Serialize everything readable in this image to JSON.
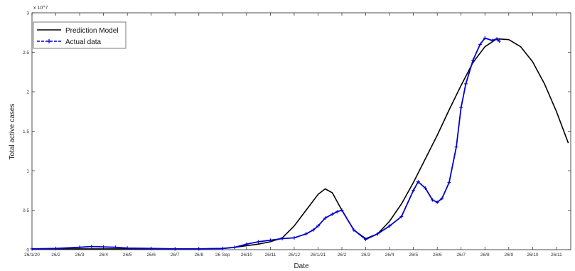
{
  "chart_data": {
    "type": "line",
    "title": "",
    "xlabel": "Date",
    "ylabel": "Total active cases",
    "y_exponent_label": "x 10^7",
    "ylim": [
      0,
      3
    ],
    "yticks": [
      0,
      0.5,
      1,
      1.5,
      2,
      2.5,
      3
    ],
    "ytick_labels": [
      "0",
      "0.5",
      "1",
      "1.5",
      "2",
      "2.5",
      "3"
    ],
    "xticks": [
      0,
      1,
      2,
      3,
      4,
      5,
      6,
      7,
      8,
      9,
      10,
      11,
      12,
      13,
      14,
      15,
      16,
      17,
      18,
      19,
      20,
      21,
      22
    ],
    "xtick_labels": [
      "26/1/20",
      "26/2",
      "26/3",
      "26/4",
      "26/5",
      "26/6",
      "26/7",
      "26/8",
      "26 Sep",
      "26/10",
      "26/11",
      "26/12",
      "26/1/21",
      "26/2",
      "26/3",
      "26/4",
      "26/5",
      "26/6",
      "26/7",
      "26/8",
      "26/9",
      "26/10",
      "26/11"
    ],
    "xlim": [
      0,
      22.6
    ],
    "legend": {
      "placement": "top-left",
      "entries": [
        "Prediction Model",
        "Actual data"
      ]
    },
    "grid": false,
    "series": [
      {
        "name": "Prediction Model",
        "color": "#000000",
        "x": [
          0,
          1,
          2,
          3,
          4,
          5,
          6,
          7,
          8,
          8.5,
          9,
          9.5,
          10,
          10.5,
          11,
          11.5,
          12,
          12.3,
          12.6,
          13,
          13.5,
          14,
          14.5,
          15,
          15.5,
          16,
          16.5,
          17,
          17.5,
          18,
          18.5,
          19,
          19.5,
          20,
          20.5,
          21,
          21.5,
          22,
          22.5
        ],
        "y": [
          0.01,
          0.01,
          0.01,
          0.01,
          0.01,
          0.01,
          0.01,
          0.01,
          0.015,
          0.03,
          0.05,
          0.07,
          0.1,
          0.15,
          0.3,
          0.5,
          0.7,
          0.77,
          0.72,
          0.5,
          0.25,
          0.14,
          0.2,
          0.36,
          0.58,
          0.85,
          1.15,
          1.45,
          1.77,
          2.08,
          2.37,
          2.57,
          2.67,
          2.66,
          2.57,
          2.38,
          2.1,
          1.75,
          1.35
        ]
      },
      {
        "name": "Actual data",
        "color": "#0000cc",
        "x": [
          0,
          1,
          2,
          2.5,
          3,
          3.5,
          4,
          5,
          6,
          7,
          8,
          8.5,
          9,
          9.5,
          10,
          10.5,
          11,
          11.5,
          11.8,
          12,
          12.3,
          12.6,
          12.8,
          13,
          13.5,
          14,
          14.5,
          15,
          15.5,
          16,
          16.2,
          16.5,
          16.8,
          17,
          17.2,
          17.5,
          17.8,
          18,
          18.2,
          18.5,
          18.8,
          19,
          19.3,
          19.5,
          19.6
        ],
        "y": [
          0.01,
          0.015,
          0.03,
          0.04,
          0.035,
          0.03,
          0.02,
          0.015,
          0.01,
          0.01,
          0.015,
          0.03,
          0.07,
          0.1,
          0.12,
          0.14,
          0.15,
          0.2,
          0.25,
          0.3,
          0.4,
          0.45,
          0.48,
          0.5,
          0.25,
          0.13,
          0.2,
          0.3,
          0.42,
          0.75,
          0.86,
          0.78,
          0.63,
          0.6,
          0.65,
          0.85,
          1.3,
          1.8,
          2.1,
          2.4,
          2.6,
          2.68,
          2.65,
          2.67,
          2.64
        ]
      }
    ]
  }
}
